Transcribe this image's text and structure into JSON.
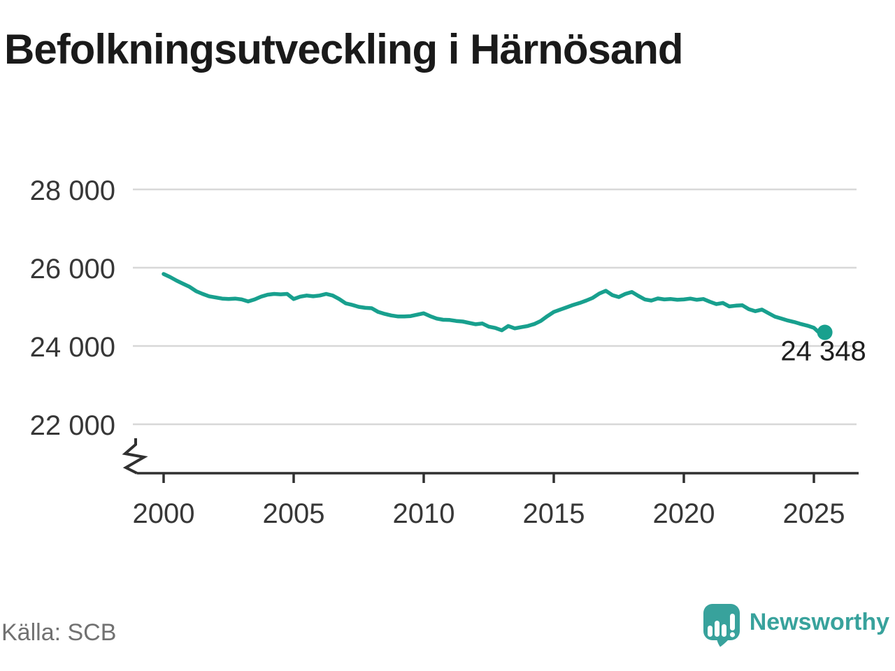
{
  "title": "Befolkningsutveckling i Härnösand",
  "source_label": "Källa: SCB",
  "brand": {
    "name": "Newsworthy",
    "color": "#38a29c"
  },
  "colors": {
    "line": "#18a08e",
    "grid": "#d8d8d8",
    "axis": "#303030"
  },
  "chart_data": {
    "type": "line",
    "title": "Befolkningsutveckling i Härnösand",
    "xlabel": "",
    "ylabel": "",
    "grid": "horizontal",
    "y_axis_break": true,
    "x_ticks": [
      2000,
      2005,
      2010,
      2015,
      2020,
      2025
    ],
    "x_tick_labels": [
      "2000",
      "2005",
      "2010",
      "2015",
      "2020",
      "2025"
    ],
    "y_ticks": [
      28000,
      26000,
      24000,
      22000
    ],
    "y_tick_labels": [
      "28 000",
      "26 000",
      "24 000",
      "22 000"
    ],
    "ylim_shown": [
      21500,
      28600
    ],
    "last_value": 24348,
    "last_value_label": "24 348",
    "line_color": "#18a08e",
    "points": [
      [
        2000.0,
        25840
      ],
      [
        2000.25,
        25760
      ],
      [
        2000.5,
        25670
      ],
      [
        2000.75,
        25590
      ],
      [
        2001.0,
        25510
      ],
      [
        2001.25,
        25400
      ],
      [
        2001.5,
        25330
      ],
      [
        2001.75,
        25270
      ],
      [
        2002.0,
        25240
      ],
      [
        2002.25,
        25210
      ],
      [
        2002.5,
        25200
      ],
      [
        2002.75,
        25210
      ],
      [
        2003.0,
        25190
      ],
      [
        2003.25,
        25140
      ],
      [
        2003.5,
        25190
      ],
      [
        2003.75,
        25260
      ],
      [
        2004.0,
        25310
      ],
      [
        2004.25,
        25330
      ],
      [
        2004.5,
        25320
      ],
      [
        2004.75,
        25330
      ],
      [
        2005.0,
        25200
      ],
      [
        2005.25,
        25260
      ],
      [
        2005.5,
        25290
      ],
      [
        2005.75,
        25270
      ],
      [
        2006.0,
        25290
      ],
      [
        2006.25,
        25330
      ],
      [
        2006.5,
        25290
      ],
      [
        2006.75,
        25200
      ],
      [
        2007.0,
        25090
      ],
      [
        2007.25,
        25050
      ],
      [
        2007.5,
        25000
      ],
      [
        2007.75,
        24975
      ],
      [
        2008.0,
        24965
      ],
      [
        2008.25,
        24870
      ],
      [
        2008.5,
        24820
      ],
      [
        2008.75,
        24780
      ],
      [
        2009.0,
        24755
      ],
      [
        2009.25,
        24755
      ],
      [
        2009.5,
        24765
      ],
      [
        2009.75,
        24800
      ],
      [
        2010.0,
        24835
      ],
      [
        2010.25,
        24760
      ],
      [
        2010.5,
        24700
      ],
      [
        2010.75,
        24670
      ],
      [
        2011.0,
        24665
      ],
      [
        2011.25,
        24640
      ],
      [
        2011.5,
        24625
      ],
      [
        2011.75,
        24590
      ],
      [
        2012.0,
        24555
      ],
      [
        2012.25,
        24575
      ],
      [
        2012.5,
        24495
      ],
      [
        2012.75,
        24460
      ],
      [
        2013.0,
        24400
      ],
      [
        2013.25,
        24510
      ],
      [
        2013.5,
        24450
      ],
      [
        2013.75,
        24480
      ],
      [
        2014.0,
        24510
      ],
      [
        2014.25,
        24560
      ],
      [
        2014.5,
        24640
      ],
      [
        2014.75,
        24760
      ],
      [
        2015.0,
        24870
      ],
      [
        2015.25,
        24930
      ],
      [
        2015.5,
        24990
      ],
      [
        2015.75,
        25050
      ],
      [
        2016.0,
        25100
      ],
      [
        2016.25,
        25160
      ],
      [
        2016.5,
        25230
      ],
      [
        2016.75,
        25340
      ],
      [
        2017.0,
        25410
      ],
      [
        2017.25,
        25300
      ],
      [
        2017.5,
        25250
      ],
      [
        2017.75,
        25330
      ],
      [
        2018.0,
        25380
      ],
      [
        2018.25,
        25280
      ],
      [
        2018.5,
        25190
      ],
      [
        2018.75,
        25160
      ],
      [
        2019.0,
        25215
      ],
      [
        2019.25,
        25190
      ],
      [
        2019.5,
        25200
      ],
      [
        2019.75,
        25180
      ],
      [
        2020.0,
        25190
      ],
      [
        2020.25,
        25210
      ],
      [
        2020.5,
        25180
      ],
      [
        2020.75,
        25200
      ],
      [
        2021.0,
        25130
      ],
      [
        2021.25,
        25070
      ],
      [
        2021.5,
        25100
      ],
      [
        2021.75,
        25010
      ],
      [
        2022.0,
        25030
      ],
      [
        2022.25,
        25040
      ],
      [
        2022.5,
        24940
      ],
      [
        2022.75,
        24890
      ],
      [
        2023.0,
        24930
      ],
      [
        2023.25,
        24840
      ],
      [
        2023.5,
        24750
      ],
      [
        2023.75,
        24700
      ],
      [
        2024.0,
        24650
      ],
      [
        2024.25,
        24610
      ],
      [
        2024.5,
        24560
      ],
      [
        2024.75,
        24520
      ],
      [
        2025.0,
        24465
      ],
      [
        2025.17,
        24360
      ],
      [
        2025.33,
        24330
      ],
      [
        2025.42,
        24348
      ]
    ]
  }
}
